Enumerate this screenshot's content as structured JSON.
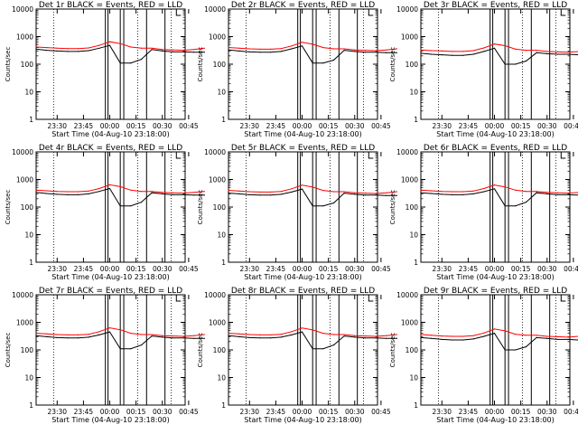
{
  "figure": {
    "panel_title_template": "Det {n}r BLACK = Events, RED = LLD",
    "x_axis_label": "Start Time (04-Aug-10 23:18:00)",
    "y_axis_label": "Counts/sec",
    "x_tick_labels": [
      "23:30",
      "23:45",
      "00:00",
      "00:15",
      "00:30",
      "00:45"
    ],
    "y_tick_labels": [
      "1",
      "10",
      "100",
      "1000",
      "10000"
    ],
    "colors": {
      "events": "#000000",
      "lld": "#ff0000",
      "background": "#ffffff"
    }
  },
  "chart_data": [
    {
      "type": "line",
      "detector": "1r",
      "title": "Det 1r BLACK = Events, RED = LLD",
      "xlabel": "Start Time (04-Aug-10 23:18:00)",
      "ylabel": "Counts/sec",
      "y_scale": "log",
      "ylim": [
        1,
        10000
      ],
      "x_tick_labels": [
        "23:30",
        "23:45",
        "00:00",
        "00:15",
        "00:30",
        "00:45"
      ],
      "x": [
        "23:18",
        "23:24",
        "23:30",
        "23:36",
        "23:42",
        "23:48",
        "23:54",
        "00:00",
        "00:06",
        "00:12",
        "00:18",
        "00:24",
        "00:30",
        "00:36",
        "00:42",
        "00:48",
        "00:54"
      ],
      "series": [
        {
          "name": "Events",
          "color": "#000000",
          "values": [
            350,
            320,
            300,
            290,
            290,
            310,
            380,
            480,
            110,
            110,
            150,
            340,
            300,
            280,
            280,
            270,
            270
          ]
        },
        {
          "name": "LLD",
          "color": "#ff0000",
          "values": [
            420,
            400,
            380,
            370,
            370,
            390,
            480,
            650,
            560,
            420,
            380,
            380,
            340,
            330,
            320,
            340,
            380
          ]
        }
      ]
    },
    {
      "type": "line",
      "detector": "2r",
      "title": "Det 2r BLACK = Events, RED = LLD",
      "xlabel": "Start Time (04-Aug-10 23:18:00)",
      "ylabel": "Counts/sec",
      "y_scale": "log",
      "ylim": [
        1,
        10000
      ],
      "x_tick_labels": [
        "23:30",
        "23:45",
        "00:00",
        "00:15",
        "00:30",
        "00:45"
      ],
      "x": [
        "23:18",
        "23:24",
        "23:30",
        "23:36",
        "23:42",
        "23:48",
        "23:54",
        "00:00",
        "00:06",
        "00:12",
        "00:18",
        "00:24",
        "00:30",
        "00:36",
        "00:42",
        "00:48",
        "00:54"
      ],
      "series": [
        {
          "name": "Events",
          "color": "#000000",
          "values": [
            330,
            300,
            280,
            270,
            270,
            290,
            360,
            460,
            110,
            110,
            140,
            320,
            290,
            270,
            270,
            260,
            260
          ]
        },
        {
          "name": "LLD",
          "color": "#ff0000",
          "values": [
            400,
            380,
            360,
            350,
            350,
            370,
            460,
            620,
            530,
            400,
            360,
            360,
            330,
            320,
            310,
            330,
            360
          ]
        }
      ]
    },
    {
      "type": "line",
      "detector": "3r",
      "title": "Det 3r BLACK = Events, RED = LLD",
      "xlabel": "Start Time (04-Aug-10 23:18:00)",
      "ylabel": "Counts/sec",
      "y_scale": "log",
      "ylim": [
        1,
        10000
      ],
      "x_tick_labels": [
        "23:30",
        "23:45",
        "00:00",
        "00:15",
        "00:30",
        "00:45"
      ],
      "x": [
        "23:18",
        "23:24",
        "23:30",
        "23:36",
        "23:42",
        "23:48",
        "23:54",
        "00:00",
        "00:06",
        "00:12",
        "00:18",
        "00:24",
        "00:30",
        "00:36",
        "00:42",
        "00:48",
        "00:54"
      ],
      "series": [
        {
          "name": "Events",
          "color": "#000000",
          "values": [
            250,
            230,
            220,
            210,
            210,
            230,
            290,
            380,
            100,
            100,
            130,
            260,
            240,
            230,
            230,
            220,
            220
          ]
        },
        {
          "name": "LLD",
          "color": "#ff0000",
          "values": [
            330,
            310,
            300,
            290,
            290,
            310,
            390,
            540,
            470,
            350,
            320,
            320,
            290,
            280,
            270,
            290,
            320
          ]
        }
      ]
    },
    {
      "type": "line",
      "detector": "4r",
      "title": "Det 4r BLACK = Events, RED = LLD",
      "xlabel": "Start Time (04-Aug-10 23:18:00)",
      "ylabel": "Counts/sec",
      "y_scale": "log",
      "ylim": [
        1,
        10000
      ],
      "x_tick_labels": [
        "23:30",
        "23:45",
        "00:00",
        "00:15",
        "00:30",
        "00:45"
      ],
      "x": [
        "23:18",
        "23:24",
        "23:30",
        "23:36",
        "23:42",
        "23:48",
        "23:54",
        "00:00",
        "00:06",
        "00:12",
        "00:18",
        "00:24",
        "00:30",
        "00:36",
        "00:42",
        "00:48",
        "00:54"
      ],
      "series": [
        {
          "name": "Events",
          "color": "#000000",
          "values": [
            340,
            310,
            290,
            280,
            280,
            300,
            370,
            470,
            110,
            110,
            150,
            330,
            300,
            280,
            280,
            270,
            270
          ]
        },
        {
          "name": "LLD",
          "color": "#ff0000",
          "values": [
            410,
            390,
            370,
            360,
            360,
            380,
            470,
            640,
            550,
            410,
            370,
            370,
            340,
            330,
            320,
            340,
            370
          ]
        }
      ]
    },
    {
      "type": "line",
      "detector": "5r",
      "title": "Det 5r BLACK = Events, RED = LLD",
      "xlabel": "Start Time (04-Aug-10 23:18:00)",
      "ylabel": "Counts/sec",
      "y_scale": "log",
      "ylim": [
        1,
        10000
      ],
      "x_tick_labels": [
        "23:30",
        "23:45",
        "00:00",
        "00:15",
        "00:30",
        "00:45"
      ],
      "x": [
        "23:18",
        "23:24",
        "23:30",
        "23:36",
        "23:42",
        "23:48",
        "23:54",
        "00:00",
        "00:06",
        "00:12",
        "00:18",
        "00:24",
        "00:30",
        "00:36",
        "00:42",
        "00:48",
        "00:54"
      ],
      "series": [
        {
          "name": "Events",
          "color": "#000000",
          "values": [
            320,
            300,
            280,
            270,
            270,
            290,
            350,
            450,
            110,
            110,
            140,
            320,
            290,
            270,
            270,
            260,
            260
          ]
        },
        {
          "name": "LLD",
          "color": "#ff0000",
          "values": [
            400,
            380,
            360,
            350,
            350,
            370,
            460,
            620,
            530,
            400,
            360,
            360,
            330,
            320,
            310,
            330,
            360
          ]
        }
      ]
    },
    {
      "type": "line",
      "detector": "6r",
      "title": "Det 6r BLACK = Events, RED = LLD",
      "xlabel": "Start Time (04-Aug-10 23:18:00)",
      "ylabel": "Counts/sec",
      "y_scale": "log",
      "ylim": [
        1,
        10000
      ],
      "x_tick_labels": [
        "23:30",
        "23:45",
        "00:00",
        "00:15",
        "00:30",
        "00:45"
      ],
      "x": [
        "23:18",
        "23:24",
        "23:30",
        "23:36",
        "23:42",
        "23:48",
        "23:54",
        "00:00",
        "00:06",
        "00:12",
        "00:18",
        "00:24",
        "00:30",
        "00:36",
        "00:42",
        "00:48",
        "00:54"
      ],
      "series": [
        {
          "name": "Events",
          "color": "#000000",
          "values": [
            330,
            310,
            290,
            280,
            280,
            300,
            360,
            460,
            110,
            110,
            150,
            330,
            300,
            280,
            280,
            270,
            270
          ]
        },
        {
          "name": "LLD",
          "color": "#ff0000",
          "values": [
            410,
            390,
            370,
            360,
            360,
            380,
            470,
            630,
            540,
            410,
            370,
            370,
            340,
            330,
            320,
            340,
            370
          ]
        }
      ]
    },
    {
      "type": "line",
      "detector": "7r",
      "title": "Det 7r BLACK = Events, RED = LLD",
      "xlabel": "Start Time (04-Aug-10 23:18:00)",
      "ylabel": "Counts/sec",
      "y_scale": "log",
      "ylim": [
        1,
        10000
      ],
      "x_tick_labels": [
        "23:30",
        "23:45",
        "00:00",
        "00:15",
        "00:30",
        "00:45"
      ],
      "x": [
        "23:18",
        "23:24",
        "23:30",
        "23:36",
        "23:42",
        "23:48",
        "23:54",
        "00:00",
        "00:06",
        "00:12",
        "00:18",
        "00:24",
        "00:30",
        "00:36",
        "00:42",
        "00:48",
        "00:54"
      ],
      "series": [
        {
          "name": "Events",
          "color": "#000000",
          "values": [
            330,
            300,
            280,
            270,
            270,
            290,
            350,
            450,
            110,
            110,
            150,
            320,
            290,
            270,
            270,
            260,
            260
          ]
        },
        {
          "name": "LLD",
          "color": "#ff0000",
          "values": [
            400,
            380,
            360,
            350,
            350,
            370,
            460,
            630,
            540,
            400,
            360,
            360,
            330,
            320,
            310,
            330,
            360
          ]
        }
      ]
    },
    {
      "type": "line",
      "detector": "8r",
      "title": "Det 8r BLACK = Events, RED = LLD",
      "xlabel": "Start Time (04-Aug-10 23:18:00)",
      "ylabel": "Counts/sec",
      "y_scale": "log",
      "ylim": [
        1,
        10000
      ],
      "x_tick_labels": [
        "23:30",
        "23:45",
        "00:00",
        "00:15",
        "00:30",
        "00:45"
      ],
      "x": [
        "23:18",
        "23:24",
        "23:30",
        "23:36",
        "23:42",
        "23:48",
        "23:54",
        "00:00",
        "00:06",
        "00:12",
        "00:18",
        "00:24",
        "00:30",
        "00:36",
        "00:42",
        "00:48",
        "00:54"
      ],
      "series": [
        {
          "name": "Events",
          "color": "#000000",
          "values": [
            330,
            300,
            280,
            270,
            270,
            290,
            350,
            450,
            110,
            110,
            150,
            320,
            290,
            270,
            270,
            260,
            260
          ]
        },
        {
          "name": "LLD",
          "color": "#ff0000",
          "values": [
            400,
            380,
            360,
            350,
            350,
            370,
            460,
            620,
            530,
            400,
            360,
            360,
            330,
            320,
            310,
            330,
            360
          ]
        }
      ]
    },
    {
      "type": "line",
      "detector": "9r",
      "title": "Det 9r BLACK = Events, RED = LLD",
      "xlabel": "Start Time (04-Aug-10 23:18:00)",
      "ylabel": "Counts/sec",
      "y_scale": "log",
      "ylim": [
        1,
        10000
      ],
      "x_tick_labels": [
        "23:30",
        "23:45",
        "00:00",
        "00:15",
        "00:30",
        "00:45"
      ],
      "x": [
        "23:18",
        "23:24",
        "23:30",
        "23:36",
        "23:42",
        "23:48",
        "23:54",
        "00:00",
        "00:06",
        "00:12",
        "00:18",
        "00:24",
        "00:30",
        "00:36",
        "00:42",
        "00:48",
        "00:54"
      ],
      "series": [
        {
          "name": "Events",
          "color": "#000000",
          "values": [
            280,
            260,
            240,
            230,
            230,
            250,
            310,
            400,
            100,
            100,
            130,
            280,
            260,
            240,
            240,
            230,
            230
          ]
        },
        {
          "name": "LLD",
          "color": "#ff0000",
          "values": [
            360,
            340,
            320,
            310,
            310,
            330,
            410,
            570,
            490,
            370,
            340,
            340,
            310,
            300,
            290,
            310,
            340
          ]
        }
      ]
    }
  ]
}
